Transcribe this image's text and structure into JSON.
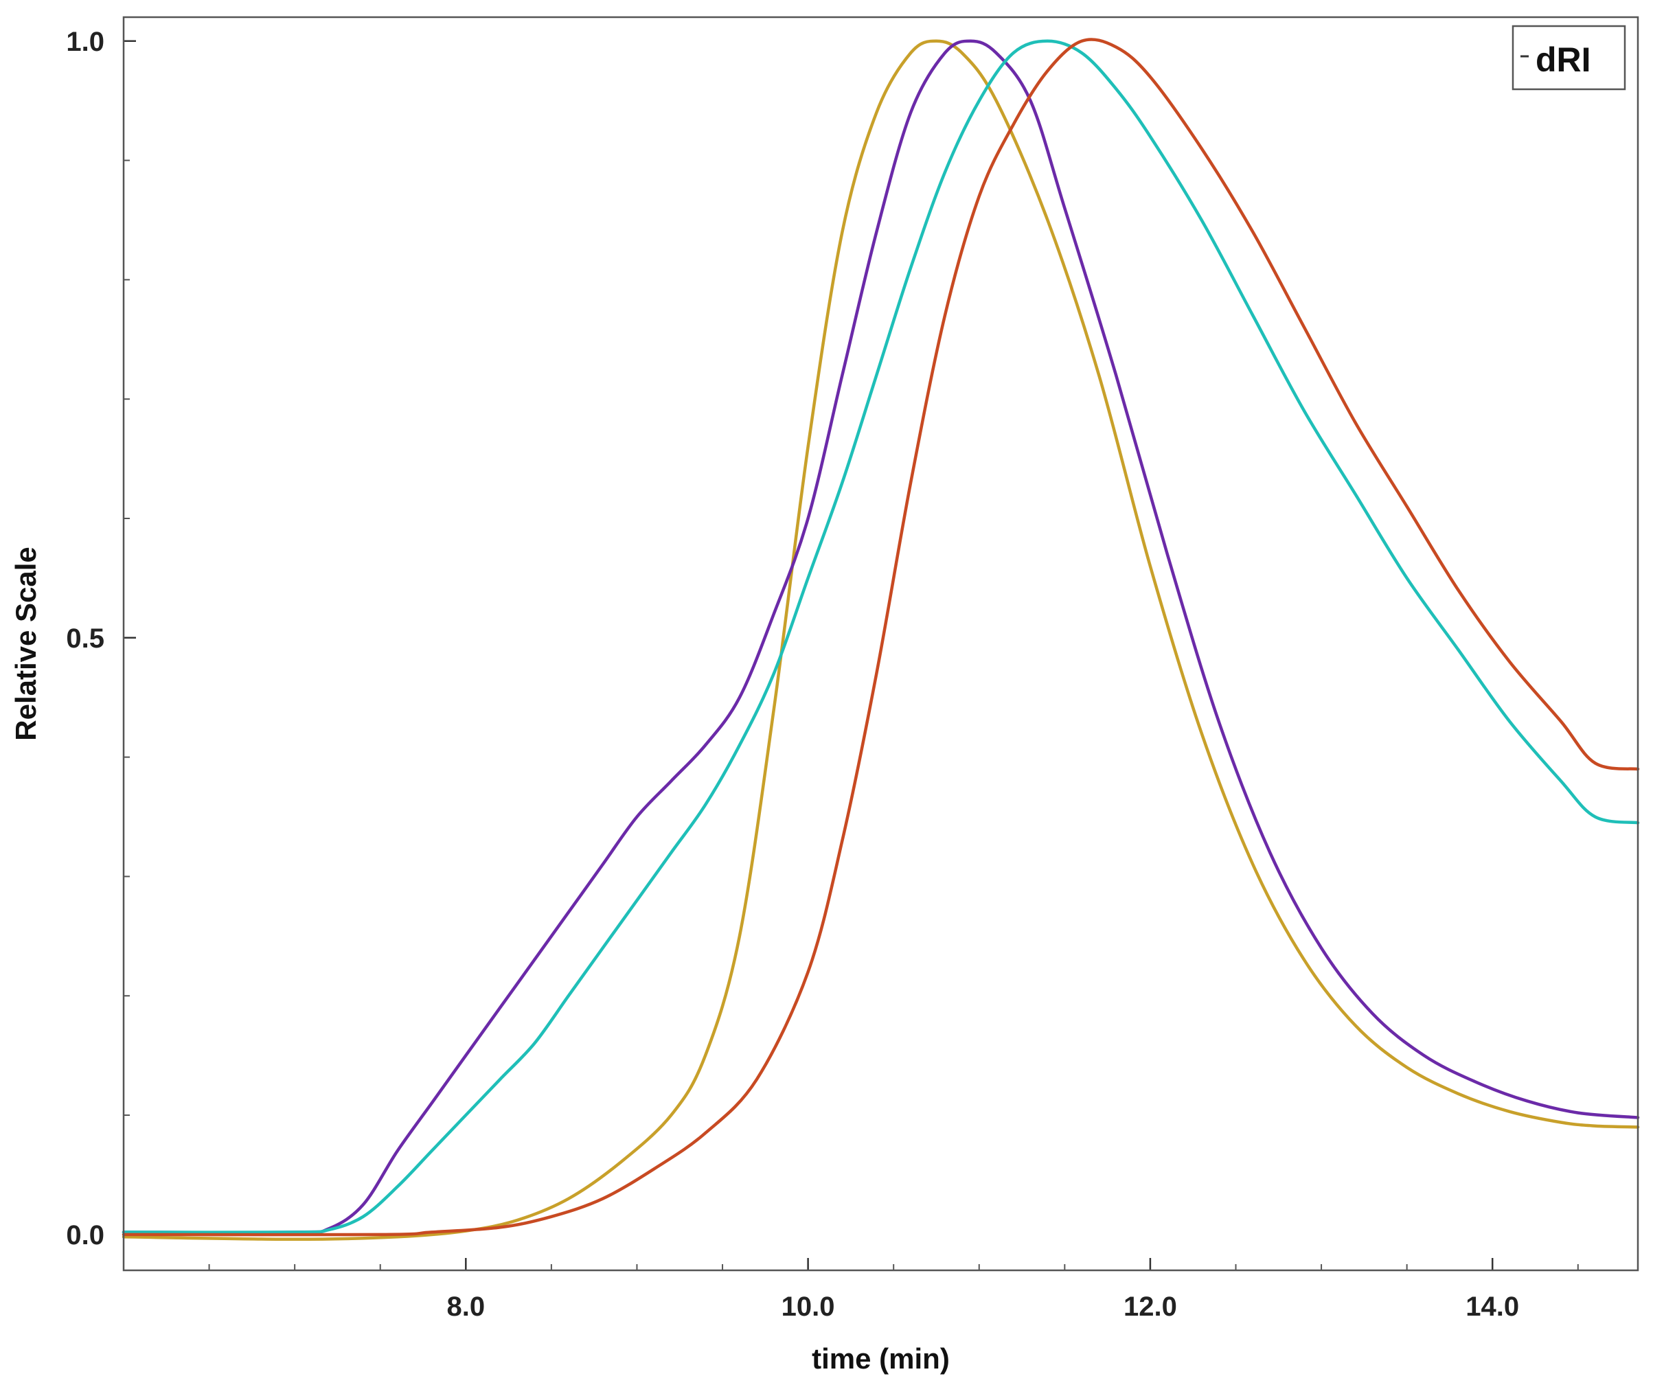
{
  "chart_data": {
    "type": "line",
    "title": "",
    "xlabel": "time (min)",
    "ylabel": "Relative Scale",
    "xlim": [
      6.0,
      14.85
    ],
    "ylim": [
      -0.03,
      1.02
    ],
    "x_ticks": [
      8.0,
      10.0,
      12.0,
      14.0
    ],
    "x_tick_labels": [
      "8.0",
      "10.0",
      "12.0",
      "14.0"
    ],
    "y_ticks": [
      0.0,
      0.5,
      1.0
    ],
    "y_tick_labels": [
      "0.0",
      "0.5",
      "1.0"
    ],
    "x_minor_step": 0.5,
    "y_minor_step": 0.1,
    "grid": false,
    "legend": {
      "position": "top-right",
      "label": "dRI"
    },
    "series": [
      {
        "color": "#c8a02a",
        "points": [
          [
            6.0,
            -0.002
          ],
          [
            7.0,
            -0.004
          ],
          [
            7.6,
            -0.002
          ],
          [
            8.0,
            0.003
          ],
          [
            8.3,
            0.012
          ],
          [
            8.6,
            0.03
          ],
          [
            8.9,
            0.06
          ],
          [
            9.2,
            0.1
          ],
          [
            9.4,
            0.15
          ],
          [
            9.6,
            0.25
          ],
          [
            9.8,
            0.44
          ],
          [
            10.0,
            0.66
          ],
          [
            10.2,
            0.84
          ],
          [
            10.4,
            0.94
          ],
          [
            10.6,
            0.99
          ],
          [
            10.75,
            1.0
          ],
          [
            10.9,
            0.99
          ],
          [
            11.1,
            0.95
          ],
          [
            11.4,
            0.85
          ],
          [
            11.7,
            0.72
          ],
          [
            12.0,
            0.56
          ],
          [
            12.3,
            0.42
          ],
          [
            12.6,
            0.31
          ],
          [
            12.9,
            0.23
          ],
          [
            13.2,
            0.175
          ],
          [
            13.5,
            0.14
          ],
          [
            13.8,
            0.118
          ],
          [
            14.1,
            0.103
          ],
          [
            14.4,
            0.094
          ],
          [
            14.6,
            0.091
          ],
          [
            14.85,
            0.09
          ]
        ]
      },
      {
        "color": "#6b2aa8",
        "points": [
          [
            6.0,
            0.002
          ],
          [
            7.0,
            0.002
          ],
          [
            7.2,
            0.005
          ],
          [
            7.4,
            0.025
          ],
          [
            7.6,
            0.07
          ],
          [
            7.8,
            0.11
          ],
          [
            8.0,
            0.15
          ],
          [
            8.2,
            0.19
          ],
          [
            8.4,
            0.23
          ],
          [
            8.6,
            0.27
          ],
          [
            8.8,
            0.31
          ],
          [
            9.0,
            0.35
          ],
          [
            9.2,
            0.38
          ],
          [
            9.4,
            0.41
          ],
          [
            9.6,
            0.45
          ],
          [
            9.8,
            0.52
          ],
          [
            10.0,
            0.6
          ],
          [
            10.2,
            0.72
          ],
          [
            10.4,
            0.84
          ],
          [
            10.6,
            0.94
          ],
          [
            10.8,
            0.99
          ],
          [
            10.95,
            1.0
          ],
          [
            11.1,
            0.99
          ],
          [
            11.3,
            0.95
          ],
          [
            11.5,
            0.86
          ],
          [
            11.8,
            0.72
          ],
          [
            12.1,
            0.57
          ],
          [
            12.4,
            0.43
          ],
          [
            12.7,
            0.32
          ],
          [
            13.0,
            0.24
          ],
          [
            13.3,
            0.185
          ],
          [
            13.6,
            0.15
          ],
          [
            13.9,
            0.128
          ],
          [
            14.2,
            0.112
          ],
          [
            14.5,
            0.102
          ],
          [
            14.85,
            0.098
          ]
        ]
      },
      {
        "color": "#1fbfb8",
        "points": [
          [
            6.0,
            0.002
          ],
          [
            7.0,
            0.002
          ],
          [
            7.2,
            0.004
          ],
          [
            7.4,
            0.015
          ],
          [
            7.6,
            0.04
          ],
          [
            7.8,
            0.07
          ],
          [
            8.0,
            0.1
          ],
          [
            8.2,
            0.13
          ],
          [
            8.4,
            0.16
          ],
          [
            8.6,
            0.2
          ],
          [
            8.8,
            0.24
          ],
          [
            9.0,
            0.28
          ],
          [
            9.2,
            0.32
          ],
          [
            9.4,
            0.36
          ],
          [
            9.6,
            0.41
          ],
          [
            9.8,
            0.47
          ],
          [
            10.0,
            0.55
          ],
          [
            10.2,
            0.63
          ],
          [
            10.4,
            0.72
          ],
          [
            10.6,
            0.81
          ],
          [
            10.8,
            0.89
          ],
          [
            11.0,
            0.95
          ],
          [
            11.2,
            0.99
          ],
          [
            11.4,
            1.0
          ],
          [
            11.6,
            0.99
          ],
          [
            11.8,
            0.96
          ],
          [
            12.0,
            0.92
          ],
          [
            12.3,
            0.85
          ],
          [
            12.6,
            0.77
          ],
          [
            12.9,
            0.69
          ],
          [
            13.2,
            0.62
          ],
          [
            13.5,
            0.55
          ],
          [
            13.8,
            0.49
          ],
          [
            14.1,
            0.43
          ],
          [
            14.4,
            0.38
          ],
          [
            14.6,
            0.35
          ],
          [
            14.85,
            0.345
          ]
        ]
      },
      {
        "color": "#c84a22",
        "points": [
          [
            6.0,
            0.0
          ],
          [
            7.5,
            0.0
          ],
          [
            7.8,
            0.002
          ],
          [
            8.2,
            0.006
          ],
          [
            8.5,
            0.015
          ],
          [
            8.8,
            0.03
          ],
          [
            9.1,
            0.055
          ],
          [
            9.4,
            0.085
          ],
          [
            9.7,
            0.13
          ],
          [
            10.0,
            0.22
          ],
          [
            10.2,
            0.33
          ],
          [
            10.4,
            0.47
          ],
          [
            10.6,
            0.63
          ],
          [
            10.8,
            0.77
          ],
          [
            11.0,
            0.87
          ],
          [
            11.2,
            0.93
          ],
          [
            11.4,
            0.975
          ],
          [
            11.6,
            1.0
          ],
          [
            11.8,
            0.995
          ],
          [
            12.0,
            0.97
          ],
          [
            12.3,
            0.91
          ],
          [
            12.6,
            0.84
          ],
          [
            12.9,
            0.76
          ],
          [
            13.2,
            0.68
          ],
          [
            13.5,
            0.61
          ],
          [
            13.8,
            0.54
          ],
          [
            14.1,
            0.48
          ],
          [
            14.4,
            0.43
          ],
          [
            14.6,
            0.395
          ],
          [
            14.85,
            0.39
          ]
        ]
      }
    ]
  }
}
